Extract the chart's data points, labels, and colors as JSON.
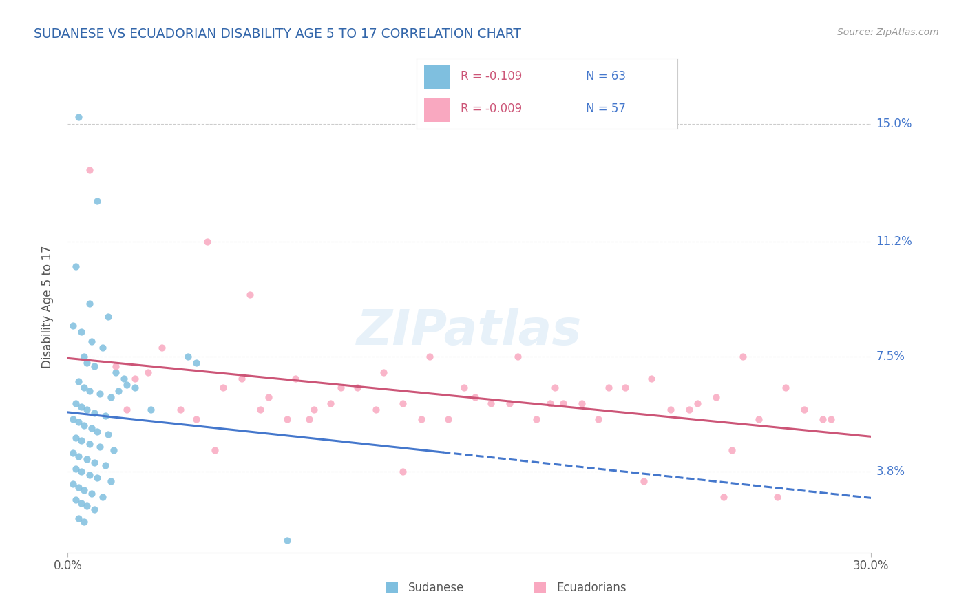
{
  "title": "SUDANESE VS ECUADORIAN DISABILITY AGE 5 TO 17 CORRELATION CHART",
  "source": "Source: ZipAtlas.com",
  "ylabel": "Disability Age 5 to 17",
  "xlim": [
    0.0,
    30.0
  ],
  "ylim": [
    1.2,
    17.0
  ],
  "yticks": [
    3.8,
    7.5,
    11.2,
    15.0
  ],
  "yticklabels": [
    "3.8%",
    "7.5%",
    "11.2%",
    "15.0%"
  ],
  "grid_color": "#cccccc",
  "bg_color": "#ffffff",
  "sudanese_color": "#7fbfdf",
  "ecuadorian_color": "#f9a8c0",
  "trend_blue": "#4477cc",
  "trend_pink": "#cc5577",
  "sudanese_R": "R = -0.109",
  "sudanese_N": "N = 63",
  "ecuadorian_R": "R = -0.009",
  "ecuadorian_N": "N = 57",
  "title_color": "#3366aa",
  "source_color": "#999999",
  "label_color": "#555555",
  "right_label_color": "#4477cc",
  "sudanese_x": [
    0.4,
    1.1,
    0.3,
    0.8,
    1.5,
    0.2,
    0.5,
    0.9,
    1.3,
    0.6,
    0.7,
    1.0,
    1.8,
    2.1,
    0.4,
    0.6,
    0.8,
    1.2,
    1.6,
    0.3,
    0.5,
    0.7,
    1.0,
    1.4,
    0.2,
    0.4,
    0.6,
    0.9,
    1.1,
    1.5,
    0.3,
    0.5,
    0.8,
    1.2,
    1.7,
    0.2,
    0.4,
    0.7,
    1.0,
    1.4,
    0.3,
    0.5,
    0.8,
    1.1,
    1.6,
    0.2,
    0.4,
    0.6,
    0.9,
    1.3,
    0.3,
    0.5,
    0.7,
    1.0,
    2.5,
    0.4,
    0.6,
    4.5,
    4.8,
    8.2,
    2.2,
    1.9,
    3.1
  ],
  "sudanese_y": [
    15.2,
    12.5,
    10.4,
    9.2,
    8.8,
    8.5,
    8.3,
    8.0,
    7.8,
    7.5,
    7.3,
    7.2,
    7.0,
    6.8,
    6.7,
    6.5,
    6.4,
    6.3,
    6.2,
    6.0,
    5.9,
    5.8,
    5.7,
    5.6,
    5.5,
    5.4,
    5.3,
    5.2,
    5.1,
    5.0,
    4.9,
    4.8,
    4.7,
    4.6,
    4.5,
    4.4,
    4.3,
    4.2,
    4.1,
    4.0,
    3.9,
    3.8,
    3.7,
    3.6,
    3.5,
    3.4,
    3.3,
    3.2,
    3.1,
    3.0,
    2.9,
    2.8,
    2.7,
    2.6,
    6.5,
    2.3,
    2.2,
    7.5,
    7.3,
    1.6,
    6.6,
    6.4,
    5.8
  ],
  "ecuadorian_x": [
    1.8,
    3.5,
    5.2,
    6.8,
    8.5,
    10.2,
    11.8,
    13.5,
    15.2,
    16.8,
    18.5,
    20.2,
    21.8,
    23.5,
    25.2,
    26.8,
    28.5,
    2.5,
    4.2,
    5.8,
    7.5,
    9.2,
    10.8,
    12.5,
    14.2,
    15.8,
    17.5,
    19.2,
    20.8,
    22.5,
    24.2,
    25.8,
    27.5,
    3.0,
    4.8,
    6.5,
    8.2,
    9.8,
    11.5,
    13.2,
    14.8,
    16.5,
    18.2,
    19.8,
    21.5,
    23.2,
    24.8,
    26.5,
    28.2,
    2.2,
    5.5,
    9.0,
    12.5,
    18.0,
    24.5,
    0.8,
    7.2
  ],
  "ecuadorian_y": [
    7.2,
    7.8,
    11.2,
    9.5,
    6.8,
    6.5,
    7.0,
    7.5,
    6.2,
    7.5,
    6.0,
    6.5,
    6.8,
    6.0,
    7.5,
    6.5,
    5.5,
    6.8,
    5.8,
    6.5,
    6.2,
    5.8,
    6.5,
    6.0,
    5.5,
    6.0,
    5.5,
    6.0,
    6.5,
    5.8,
    6.2,
    5.5,
    5.8,
    7.0,
    5.5,
    6.8,
    5.5,
    6.0,
    5.8,
    5.5,
    6.5,
    6.0,
    6.5,
    5.5,
    3.5,
    5.8,
    4.5,
    3.0,
    5.5,
    5.8,
    4.5,
    5.5,
    3.8,
    6.0,
    3.0,
    13.5,
    5.8
  ]
}
